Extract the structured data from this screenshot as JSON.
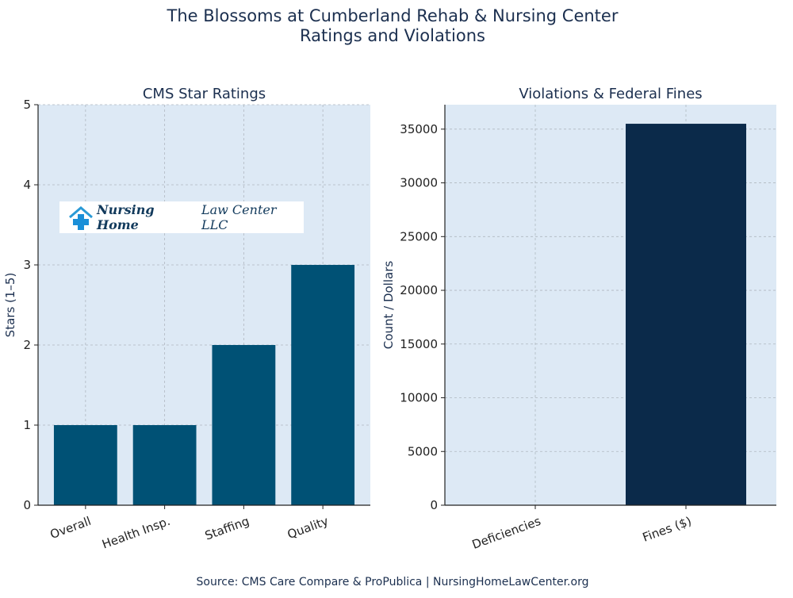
{
  "title_line1": "The Blossoms at Cumberland Rehab & Nursing Center",
  "title_line2": "Ratings and Violations",
  "source": "Source: CMS Care Compare & ProPublica | NursingHomeLawCenter.org",
  "logo": {
    "bold": "Nursing Home",
    "rest": "Law Center LLC",
    "icon": "house-plus-icon"
  },
  "colors": {
    "background": "#dde9f5",
    "left_bar": "#005175",
    "right_bar": "#0b2a4a",
    "text": "#1b2f4f"
  },
  "chart_data": [
    {
      "type": "bar",
      "title": "CMS Star Ratings",
      "xlabel": "",
      "ylabel": "Stars (1–5)",
      "categories": [
        "Overall",
        "Health Insp.",
        "Staffing",
        "Quality"
      ],
      "values": [
        1,
        1,
        2,
        3
      ],
      "ylim": [
        0,
        5
      ],
      "yticks": [
        0,
        1,
        2,
        3,
        4,
        5
      ],
      "grid": true
    },
    {
      "type": "bar",
      "title": "Violations & Federal Fines",
      "xlabel": "",
      "ylabel": "Count / Dollars",
      "categories": [
        "Deficiencies",
        "Fines ($)"
      ],
      "values": [
        0,
        35500
      ],
      "ylim": [
        0,
        37275
      ],
      "yticks": [
        0,
        5000,
        10000,
        15000,
        20000,
        25000,
        30000,
        35000
      ],
      "grid": true
    }
  ]
}
